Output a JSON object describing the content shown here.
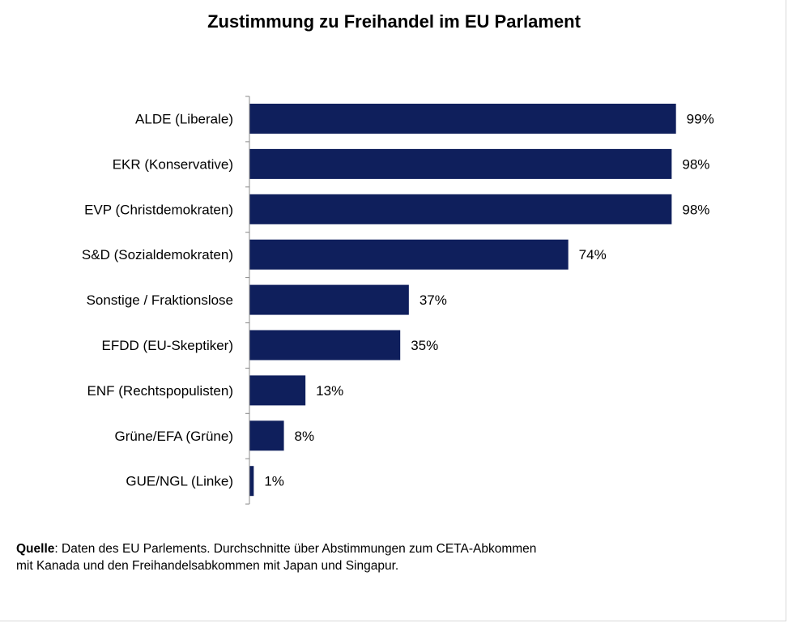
{
  "chart_data": {
    "type": "bar",
    "orientation": "horizontal",
    "title": "Zustimmung zu Freihandel im EU Parlament",
    "categories": [
      "ALDE (Liberale)",
      "EKR (Konservative)",
      "EVP (Christdemokraten)",
      "S&D (Sozialdemokraten)",
      "Sonstige / Fraktionslose",
      "EFDD (EU-Skeptiker)",
      "ENF (Rechtspopulisten)",
      "Grüne/EFA (Grüne)",
      "GUE/NGL (Linke)"
    ],
    "values": [
      99,
      98,
      98,
      74,
      37,
      35,
      13,
      8,
      1
    ],
    "value_labels": [
      "99%",
      "98%",
      "98%",
      "74%",
      "37%",
      "35%",
      "13%",
      "8%",
      "1%"
    ],
    "xlim": [
      0,
      100
    ],
    "xlabel": "",
    "ylabel": "",
    "grid": false,
    "bar_color": "#0f1f5c"
  },
  "source": {
    "label": "Quelle",
    "text": ": Daten des EU Parlements. Durchschnitte über Abstimmungen zum CETA-Abkommen",
    "line2": "mit Kanada und den Freihandelsabkommen mit Japan und Singapur."
  }
}
